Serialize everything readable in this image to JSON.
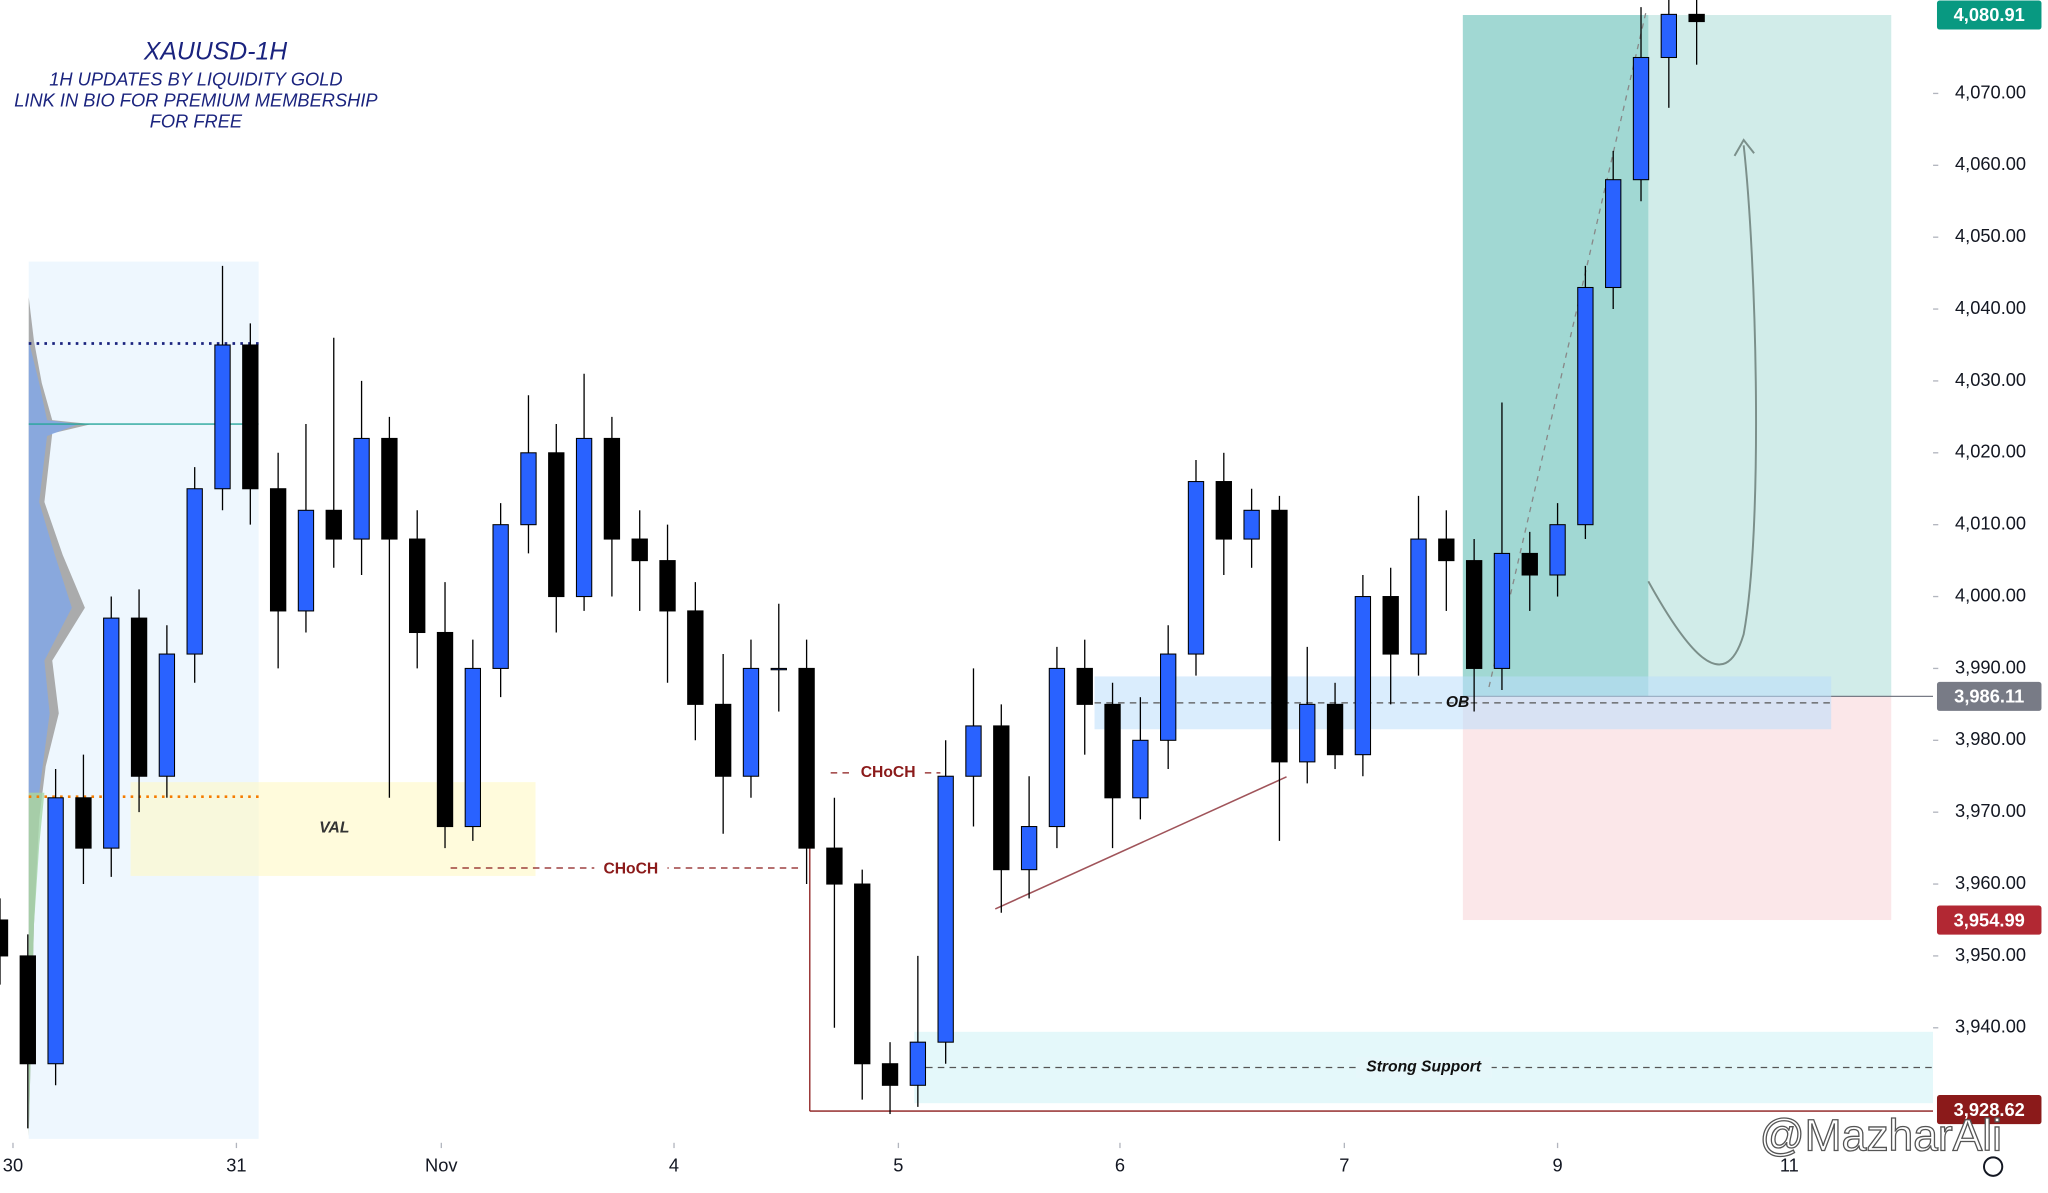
{
  "chart_data": {
    "type": "candlestick",
    "title": "XAUUSD-1H",
    "subtitle": [
      "1H UPDATES BY LIQUIDITY GOLD",
      "LINK IN BIO FOR PREMIUM MEMBERSHIP",
      "FOR FREE"
    ],
    "x": [
      0,
      3,
      6,
      9,
      12,
      15,
      18,
      21,
      24,
      27,
      30,
      33,
      36,
      39,
      42,
      45,
      48,
      51,
      54,
      57,
      60,
      63,
      66,
      69,
      72,
      75,
      78,
      81,
      84,
      87,
      90,
      93,
      96,
      99,
      102,
      105,
      108,
      111,
      114,
      117,
      120,
      123,
      126,
      129,
      132,
      135,
      138,
      141,
      144,
      147,
      150,
      153,
      156,
      159,
      162,
      165,
      168,
      171,
      174,
      177,
      180,
      183
    ],
    "ohlc": [
      [
        3955,
        3958,
        3946,
        3950
      ],
      [
        3950,
        3953,
        3926,
        3935
      ],
      [
        3935,
        3976,
        3932,
        3972
      ],
      [
        3972,
        3978,
        3960,
        3965
      ],
      [
        3965,
        4000,
        3961,
        3997
      ],
      [
        3997,
        4001,
        3970,
        3975
      ],
      [
        3975,
        3996,
        3972,
        3992
      ],
      [
        3992,
        4018,
        3988,
        4015
      ],
      [
        4015,
        4046,
        4012,
        4035
      ],
      [
        4035,
        4038,
        4010,
        4015
      ],
      [
        4015,
        4020,
        3990,
        3998
      ],
      [
        3998,
        4024,
        3995,
        4012
      ],
      [
        4012,
        4036,
        4004,
        4008
      ],
      [
        4008,
        4030,
        4003,
        4022
      ],
      [
        4022,
        4025,
        3972,
        4008
      ],
      [
        4008,
        4012,
        3990,
        3995
      ],
      [
        3995,
        4002,
        3965,
        3968
      ],
      [
        3968,
        3994,
        3966,
        3990
      ],
      [
        3990,
        4013,
        3986,
        4010
      ],
      [
        4010,
        4028,
        4006,
        4020
      ],
      [
        4020,
        4024,
        3995,
        4000
      ],
      [
        4000,
        4031,
        3998,
        4022
      ],
      [
        4022,
        4025,
        4000,
        4008
      ],
      [
        4008,
        4012,
        3998,
        4005
      ],
      [
        4005,
        4010,
        3988,
        3998
      ],
      [
        3998,
        4002,
        3980,
        3985
      ],
      [
        3985,
        3992,
        3967,
        3975
      ],
      [
        3975,
        3994,
        3972,
        3990
      ],
      [
        3990,
        3999,
        3984,
        3990
      ],
      [
        3990,
        3994,
        3960,
        3965
      ],
      [
        3965,
        3972,
        3940,
        3960
      ],
      [
        3960,
        3962,
        3930,
        3935
      ],
      [
        3935,
        3938,
        3928,
        3932
      ],
      [
        3932,
        3950,
        3929,
        3938
      ],
      [
        3938,
        3980,
        3935,
        3975
      ],
      [
        3975,
        3990,
        3968,
        3982
      ],
      [
        3982,
        3985,
        3956,
        3962
      ],
      [
        3962,
        3975,
        3958,
        3968
      ],
      [
        3968,
        3993,
        3965,
        3990
      ],
      [
        3990,
        3994,
        3978,
        3985
      ],
      [
        3985,
        3988,
        3965,
        3972
      ],
      [
        3972,
        3986,
        3969,
        3980
      ],
      [
        3980,
        3996,
        3976,
        3992
      ],
      [
        3992,
        4019,
        3989,
        4016
      ],
      [
        4016,
        4020,
        4003,
        4008
      ],
      [
        4008,
        4015,
        4004,
        4012
      ],
      [
        4012,
        4014,
        3966,
        3977
      ],
      [
        3977,
        3993,
        3974,
        3985
      ],
      [
        3985,
        3988,
        3976,
        3978
      ],
      [
        3978,
        4003,
        3975,
        4000
      ],
      [
        4000,
        4004,
        3985,
        3992
      ],
      [
        3992,
        4014,
        3989,
        4008
      ],
      [
        4008,
        4012,
        3998,
        4005
      ],
      [
        4005,
        4008,
        3984,
        3990
      ],
      [
        3990,
        4027,
        3987,
        4006
      ],
      [
        4006,
        4009,
        3998,
        4003
      ],
      [
        4003,
        4013,
        4000,
        4010
      ],
      [
        4010,
        4046,
        4008,
        4043
      ],
      [
        4043,
        4062,
        4040,
        4058
      ],
      [
        4058,
        4082,
        4055,
        4075
      ],
      [
        4075,
        4083,
        4068,
        4081
      ],
      [
        4081,
        4083,
        4074,
        4080
      ]
    ],
    "up_color": "#2962ff",
    "down_color": "#000000",
    "xlim": [
      0,
      208.5
    ],
    "ylim": [
      3924,
      4083
    ],
    "xticks": [
      {
        "value": 1.4,
        "label": "30"
      },
      {
        "value": 25.5,
        "label": "31"
      },
      {
        "value": 47.6,
        "label": "Nov"
      },
      {
        "value": 72.7,
        "label": "4"
      },
      {
        "value": 96.9,
        "label": "5"
      },
      {
        "value": 120.8,
        "label": "6"
      },
      {
        "value": 145,
        "label": "7"
      },
      {
        "value": 168,
        "label": "9"
      },
      {
        "value": 193,
        "label": "11"
      }
    ],
    "yticks": [
      {
        "value": 3940,
        "label": "3,940.00"
      },
      {
        "value": 3950,
        "label": "3,950.00"
      },
      {
        "value": 3960,
        "label": "3,960.00"
      },
      {
        "value": 3970,
        "label": "3,970.00"
      },
      {
        "value": 3980,
        "label": "3,980.00"
      },
      {
        "value": 3990,
        "label": "3,990.00"
      },
      {
        "value": 4000,
        "label": "4,000.00"
      },
      {
        "value": 4010,
        "label": "4,010.00"
      },
      {
        "value": 4020,
        "label": "4,020.00"
      },
      {
        "value": 4030,
        "label": "4,030.00"
      },
      {
        "value": 4040,
        "label": "4,040.00"
      },
      {
        "value": 4050,
        "label": "4,050.00"
      },
      {
        "value": 4060,
        "label": "4,060.00"
      },
      {
        "value": 4070,
        "label": "4,070.00"
      }
    ],
    "grid": false,
    "price_labels": [
      {
        "value": 4080.91,
        "label": "4,080.91",
        "color": "#089981"
      },
      {
        "value": 3986.11,
        "label": "3,986.11",
        "color": "#787b86"
      },
      {
        "value": 3954.99,
        "label": "3,954.99",
        "color": "#b22833"
      },
      {
        "value": 3928.62,
        "label": "3,928.62",
        "color": "#8b1a1a"
      }
    ],
    "annotations": {
      "val": "VAL",
      "choch": [
        "CHoCH",
        "CHoCH"
      ],
      "ob": "OB",
      "support": "Strong Support"
    },
    "watermark": "@MazharAli"
  }
}
